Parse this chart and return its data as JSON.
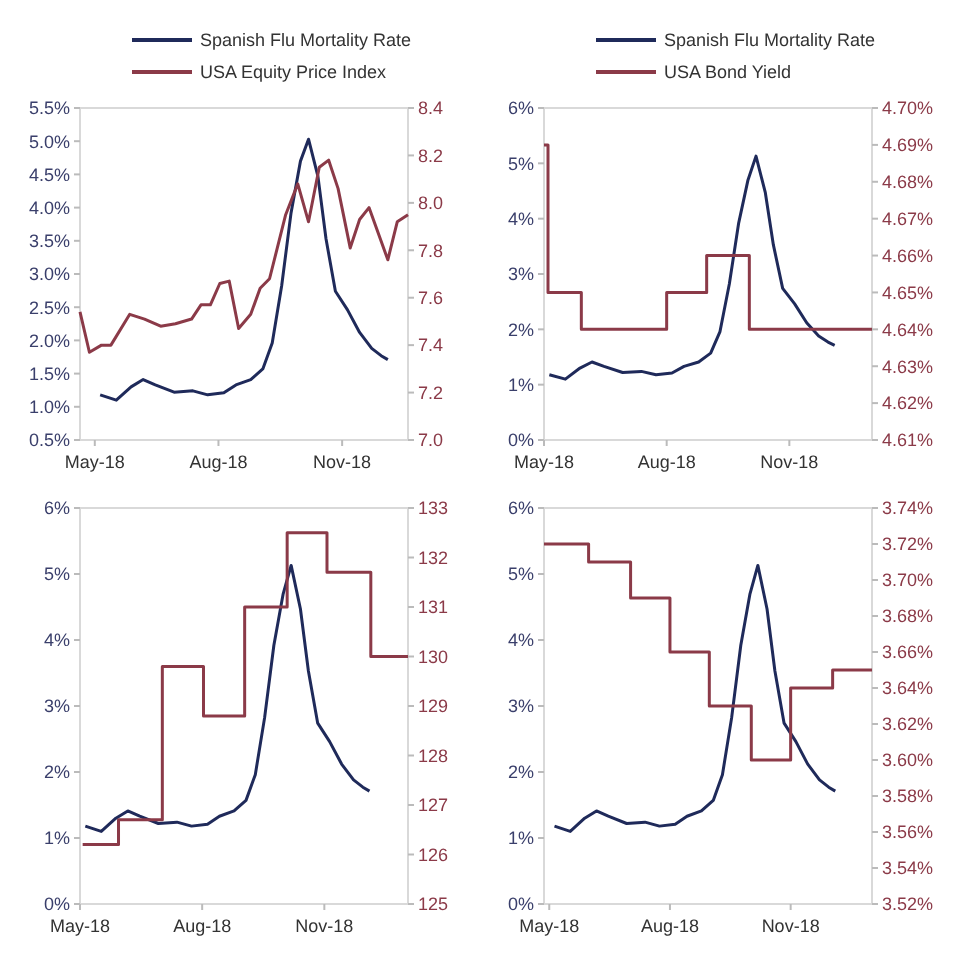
{
  "chart_data": [
    {
      "type": "line",
      "xlim": [
        "2018-04-20",
        "2018-12-20"
      ],
      "xticks": [
        {
          "value": "2018-05-01",
          "label": "May-18"
        },
        {
          "value": "2018-08-01",
          "label": "Aug-18"
        },
        {
          "value": "2018-11-01",
          "label": "Nov-18"
        }
      ],
      "legend": "top",
      "ylim": [
        0.5,
        5.5
      ],
      "yticks": [
        {
          "value": 0.5,
          "label": "0.5%"
        },
        {
          "value": 1.0,
          "label": "1.0%"
        },
        {
          "value": 1.5,
          "label": "1.5%"
        },
        {
          "value": 2.0,
          "label": "2.0%"
        },
        {
          "value": 2.5,
          "label": "2.5%"
        },
        {
          "value": 3.0,
          "label": "3.0%"
        },
        {
          "value": 3.5,
          "label": "3.5%"
        },
        {
          "value": 4.0,
          "label": "4.0%"
        },
        {
          "value": 4.5,
          "label": "4.5%"
        },
        {
          "value": 5.0,
          "label": "5.0%"
        },
        {
          "value": 5.5,
          "label": "5.5%"
        }
      ],
      "y2lim": [
        7.0,
        8.4
      ],
      "y2ticks": [
        {
          "value": 7.0,
          "label": "7.0"
        },
        7.2,
        7.4,
        7.6,
        7.8,
        {
          "value": 8.0,
          "label": "8.0"
        },
        8.2,
        8.4
      ],
      "series": [
        {
          "name": "Spanish Flu Mortality Rate",
          "color": "#1f2a5a",
          "x": [
            "2018-05-05",
            "2018-05-17",
            "2018-05-28",
            "2018-06-06",
            "2018-06-15",
            "2018-06-29",
            "2018-07-13",
            "2018-07-24",
            "2018-08-05",
            "2018-08-14",
            "2018-08-25",
            "2018-09-03",
            "2018-09-10",
            "2018-09-17",
            "2018-09-24",
            "2018-10-01",
            "2018-10-07",
            "2018-10-14",
            "2018-10-20",
            "2018-10-27",
            "2018-11-05",
            "2018-11-14",
            "2018-11-23",
            "2018-11-30",
            "2018-12-05"
          ],
          "values": [
            1.18,
            1.1,
            1.3,
            1.41,
            1.33,
            1.22,
            1.24,
            1.18,
            1.21,
            1.33,
            1.41,
            1.57,
            1.96,
            2.82,
            3.92,
            4.7,
            5.03,
            4.47,
            3.53,
            2.74,
            2.46,
            2.12,
            1.88,
            1.77,
            1.71
          ]
        },
        {
          "name": "USA Equity Price Index",
          "color": "#8b3a48",
          "axis": "y2",
          "x": [
            "2018-04-20",
            "2018-04-27",
            "2018-05-06",
            "2018-05-13",
            "2018-05-27",
            "2018-06-07",
            "2018-06-19",
            "2018-06-30",
            "2018-07-12",
            "2018-07-19",
            "2018-07-26",
            "2018-08-02",
            "2018-08-09",
            "2018-08-16",
            "2018-08-25",
            "2018-09-01",
            "2018-09-08",
            "2018-09-20",
            "2018-09-29",
            "2018-10-07",
            "2018-10-15",
            "2018-10-22",
            "2018-10-29",
            "2018-11-07",
            "2018-11-14",
            "2018-11-21",
            "2018-12-05",
            "2018-12-12",
            "2018-12-20"
          ],
          "values": [
            7.54,
            7.37,
            7.4,
            7.4,
            7.53,
            7.51,
            7.48,
            7.49,
            7.51,
            7.57,
            7.57,
            7.66,
            7.67,
            7.47,
            7.53,
            7.64,
            7.68,
            7.95,
            8.08,
            7.92,
            8.15,
            8.18,
            8.06,
            7.81,
            7.93,
            7.98,
            7.76,
            7.92,
            7.95
          ]
        }
      ]
    },
    {
      "type": "line",
      "xlim": [
        "2018-05-01",
        "2019-01-02"
      ],
      "xticks": [
        {
          "value": "2018-05-01",
          "label": "May-18"
        },
        {
          "value": "2018-08-01",
          "label": "Aug-18"
        },
        {
          "value": "2018-11-01",
          "label": "Nov-18"
        }
      ],
      "legend": "top",
      "ylim": [
        0,
        6
      ],
      "yticks": [
        {
          "value": 0,
          "label": "0%"
        },
        {
          "value": 1,
          "label": "1%"
        },
        {
          "value": 2,
          "label": "2%"
        },
        {
          "value": 3,
          "label": "3%"
        },
        {
          "value": 4,
          "label": "4%"
        },
        {
          "value": 5,
          "label": "5%"
        },
        {
          "value": 6,
          "label": "6%"
        }
      ],
      "y2lim": [
        4.61,
        4.7
      ],
      "y2ticks": [
        {
          "value": 4.61,
          "label": "4.61%"
        },
        {
          "value": 4.62,
          "label": "4.62%"
        },
        {
          "value": 4.63,
          "label": "4.63%"
        },
        {
          "value": 4.64,
          "label": "4.64%"
        },
        {
          "value": 4.65,
          "label": "4.65%"
        },
        {
          "value": 4.66,
          "label": "4.66%"
        },
        {
          "value": 4.67,
          "label": "4.67%"
        },
        {
          "value": 4.68,
          "label": "4.68%"
        },
        {
          "value": 4.69,
          "label": "4.69%"
        },
        {
          "value": 4.7,
          "label": "4.70%"
        }
      ],
      "series": [
        {
          "name": "Spanish Flu Mortality Rate",
          "color": "#1f2a5a",
          "x": [
            "2018-05-05",
            "2018-05-17",
            "2018-05-28",
            "2018-06-06",
            "2018-06-15",
            "2018-06-29",
            "2018-07-13",
            "2018-07-24",
            "2018-08-05",
            "2018-08-14",
            "2018-08-25",
            "2018-09-03",
            "2018-09-10",
            "2018-09-17",
            "2018-09-24",
            "2018-10-01",
            "2018-10-07",
            "2018-10-14",
            "2018-10-20",
            "2018-10-27",
            "2018-11-05",
            "2018-11-14",
            "2018-11-23",
            "2018-11-30",
            "2018-12-05"
          ],
          "values": [
            1.18,
            1.1,
            1.3,
            1.41,
            1.33,
            1.22,
            1.24,
            1.18,
            1.21,
            1.33,
            1.41,
            1.57,
            1.96,
            2.82,
            3.92,
            4.7,
            5.13,
            4.47,
            3.53,
            2.74,
            2.46,
            2.12,
            1.88,
            1.77,
            1.71
          ]
        },
        {
          "name": "USA Bond Yield",
          "color": "#8b3a48",
          "type": "step",
          "axis": "y2",
          "x": [
            "2018-05-01",
            "2018-05-04",
            "2018-05-29",
            "2018-08-01",
            "2018-08-31",
            "2018-10-02",
            "2019-01-02"
          ],
          "values": [
            4.69,
            4.65,
            4.64,
            4.65,
            4.66,
            4.64,
            4.64
          ]
        }
      ]
    },
    {
      "type": "line",
      "xlim": [
        "2018-05-01",
        "2019-01-03"
      ],
      "xticks": [
        {
          "value": "2018-05-01",
          "label": "May-18"
        },
        {
          "value": "2018-08-01",
          "label": "Aug-18"
        },
        {
          "value": "2018-11-01",
          "label": "Nov-18"
        }
      ],
      "ylim": [
        0,
        6
      ],
      "yticks": [
        {
          "value": 0,
          "label": "0%"
        },
        {
          "value": 1,
          "label": "1%"
        },
        {
          "value": 2,
          "label": "2%"
        },
        {
          "value": 3,
          "label": "3%"
        },
        {
          "value": 4,
          "label": "4%"
        },
        {
          "value": 5,
          "label": "5%"
        },
        {
          "value": 6,
          "label": "6%"
        }
      ],
      "y2lim": [
        125,
        133
      ],
      "y2ticks": [
        125,
        126,
        127,
        128,
        129,
        130,
        131,
        132,
        133
      ],
      "series": [
        {
          "color": "#1f2a5a",
          "x": [
            "2018-05-05",
            "2018-05-17",
            "2018-05-28",
            "2018-06-06",
            "2018-06-15",
            "2018-06-29",
            "2018-07-13",
            "2018-07-24",
            "2018-08-05",
            "2018-08-14",
            "2018-08-25",
            "2018-09-03",
            "2018-09-10",
            "2018-09-17",
            "2018-09-24",
            "2018-10-01",
            "2018-10-07",
            "2018-10-14",
            "2018-10-20",
            "2018-10-27",
            "2018-11-05",
            "2018-11-14",
            "2018-11-23",
            "2018-11-30",
            "2018-12-05"
          ],
          "values": [
            1.18,
            1.1,
            1.3,
            1.41,
            1.33,
            1.22,
            1.24,
            1.18,
            1.21,
            1.33,
            1.41,
            1.57,
            1.96,
            2.82,
            3.92,
            4.7,
            5.13,
            4.47,
            3.53,
            2.74,
            2.46,
            2.12,
            1.88,
            1.77,
            1.71
          ]
        },
        {
          "color": "#8b3a48",
          "type": "step",
          "axis": "y2",
          "x": [
            "2018-05-03",
            "2018-05-30",
            "2018-07-02",
            "2018-08-02",
            "2018-09-02",
            "2018-10-04",
            "2018-11-03",
            "2018-12-06",
            "2019-01-03"
          ],
          "values": [
            126.2,
            126.7,
            129.8,
            128.8,
            131.0,
            132.5,
            131.7,
            130.0,
            130.0
          ]
        }
      ]
    },
    {
      "type": "line",
      "xlim": [
        "2018-04-27",
        "2019-01-02"
      ],
      "xticks": [
        {
          "value": "2018-05-01",
          "label": "May-18"
        },
        {
          "value": "2018-08-01",
          "label": "Aug-18"
        },
        {
          "value": "2018-11-01",
          "label": "Nov-18"
        }
      ],
      "ylim": [
        0,
        6
      ],
      "yticks": [
        {
          "value": 0,
          "label": "0%"
        },
        {
          "value": 1,
          "label": "1%"
        },
        {
          "value": 2,
          "label": "2%"
        },
        {
          "value": 3,
          "label": "3%"
        },
        {
          "value": 4,
          "label": "4%"
        },
        {
          "value": 5,
          "label": "5%"
        },
        {
          "value": 6,
          "label": "6%"
        }
      ],
      "y2lim": [
        3.52,
        3.74
      ],
      "y2ticks": [
        {
          "value": 3.52,
          "label": "3.52%"
        },
        {
          "value": 3.54,
          "label": "3.54%"
        },
        {
          "value": 3.56,
          "label": "3.56%"
        },
        {
          "value": 3.58,
          "label": "3.58%"
        },
        {
          "value": 3.6,
          "label": "3.60%"
        },
        {
          "value": 3.62,
          "label": "3.62%"
        },
        {
          "value": 3.64,
          "label": "3.64%"
        },
        {
          "value": 3.66,
          "label": "3.66%"
        },
        {
          "value": 3.68,
          "label": "3.68%"
        },
        {
          "value": 3.7,
          "label": "3.70%"
        },
        {
          "value": 3.72,
          "label": "3.72%"
        },
        {
          "value": 3.74,
          "label": "3.74%"
        }
      ],
      "series": [
        {
          "color": "#1f2a5a",
          "x": [
            "2018-05-05",
            "2018-05-17",
            "2018-05-28",
            "2018-06-06",
            "2018-06-15",
            "2018-06-29",
            "2018-07-13",
            "2018-07-24",
            "2018-08-05",
            "2018-08-14",
            "2018-08-25",
            "2018-09-03",
            "2018-09-10",
            "2018-09-17",
            "2018-09-24",
            "2018-10-01",
            "2018-10-07",
            "2018-10-14",
            "2018-10-20",
            "2018-10-27",
            "2018-11-05",
            "2018-11-14",
            "2018-11-23",
            "2018-11-30",
            "2018-12-05"
          ],
          "values": [
            1.18,
            1.1,
            1.3,
            1.41,
            1.33,
            1.22,
            1.24,
            1.18,
            1.21,
            1.33,
            1.41,
            1.57,
            1.96,
            2.82,
            3.92,
            4.7,
            5.13,
            4.47,
            3.53,
            2.74,
            2.46,
            2.12,
            1.88,
            1.77,
            1.71
          ]
        },
        {
          "color": "#8b3a48",
          "type": "step",
          "axis": "y2",
          "x": [
            "2018-04-27",
            "2018-05-31",
            "2018-07-02",
            "2018-08-01",
            "2018-08-31",
            "2018-10-02",
            "2018-11-01",
            "2018-12-03",
            "2019-01-02"
          ],
          "values": [
            3.72,
            3.71,
            3.69,
            3.66,
            3.63,
            3.6,
            3.64,
            3.65,
            3.65
          ]
        }
      ]
    }
  ]
}
